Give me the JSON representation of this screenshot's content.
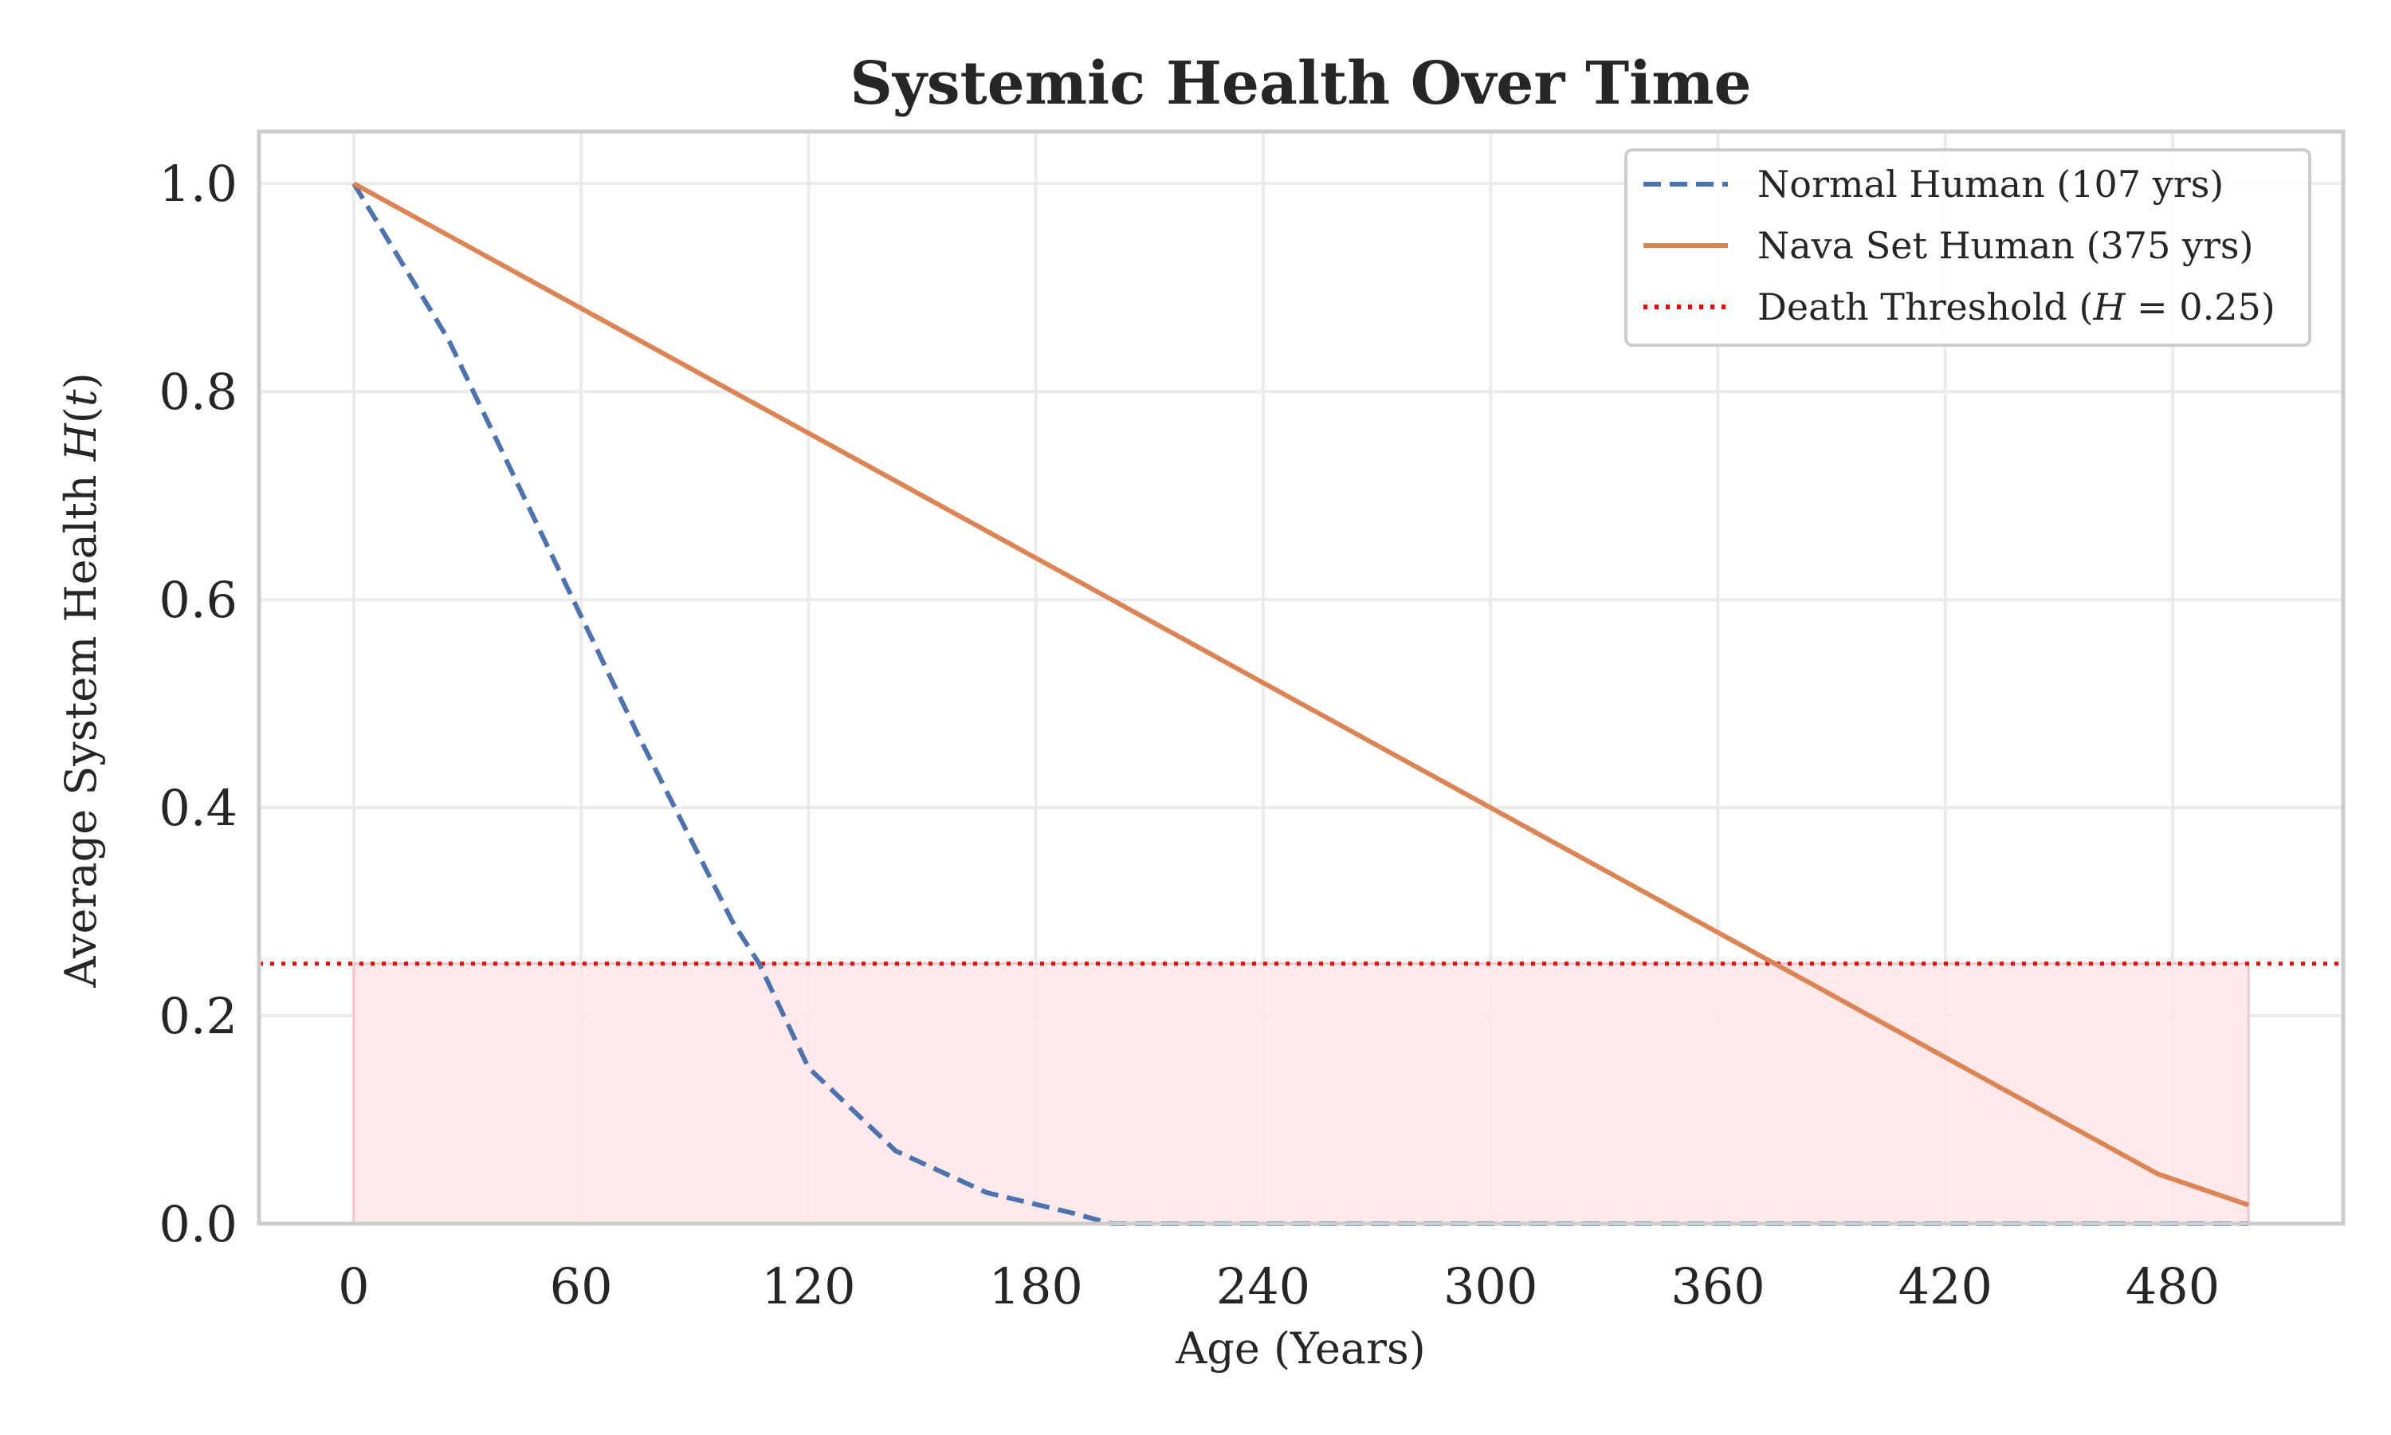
{
  "chart_data": {
    "type": "line",
    "title": "Systemic Health Over Time",
    "xlabel": "Age (Years)",
    "ylabel": "Average System Health H(t)",
    "xlim": [
      -25,
      525
    ],
    "ylim": [
      0,
      1.05
    ],
    "xticks": [
      0,
      60,
      120,
      180,
      240,
      300,
      360,
      420,
      480
    ],
    "yticks": [
      0.0,
      0.2,
      0.4,
      0.6,
      0.8,
      1.0
    ],
    "ytick_labels": [
      "0.0",
      "0.2",
      "0.4",
      "0.6",
      "0.8",
      "1.0"
    ],
    "grid": true,
    "legend_position": "top-right",
    "series": [
      {
        "name": "Normal Human (107 yrs)",
        "color": "#4c72b0",
        "style": "dashed",
        "x": [
          0,
          25,
          50,
          75,
          100,
          107,
          120,
          143,
          167,
          190,
          200,
          250,
          300,
          350,
          400,
          450,
          500
        ],
        "y": [
          1.0,
          0.85,
          0.66,
          0.47,
          0.29,
          0.25,
          0.15,
          0.07,
          0.03,
          0.01,
          0.0,
          0.0,
          0.0,
          0.0,
          0.0,
          0.0,
          0.0
        ]
      },
      {
        "name": "Nava Set Human (375 yrs)",
        "color": "#dd8452",
        "style": "solid",
        "x": [
          0,
          375,
          476,
          500
        ],
        "y": [
          1.0,
          0.25,
          0.048,
          0.018
        ]
      }
    ],
    "threshold": {
      "name": "Death Threshold (H = 0.25)",
      "label_prefix": "Death Threshold (",
      "label_var": "H",
      "label_suffix": " = 0.25)",
      "value": 0.25,
      "color": "#ff0000",
      "style": "dotted"
    },
    "shaded_region": {
      "x": [
        0,
        500
      ],
      "y": [
        0,
        0.25
      ],
      "color": "#ffe6e8"
    }
  }
}
